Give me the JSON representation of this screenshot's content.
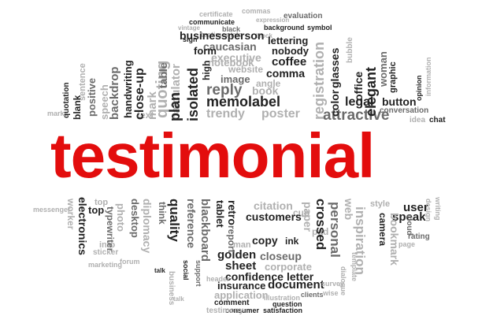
{
  "headline": "testimonial",
  "colors": {
    "headline": "#e30d0d",
    "dark_word": "#222222",
    "mid_word": "#6b6b6b",
    "light_word": "#b0b0b0",
    "background": "#ffffff"
  },
  "top_words": {
    "certificate": "certificate",
    "commas": "commas",
    "expression": "expression",
    "evaluation": "evaluation",
    "communicate": "communicate",
    "black": "black",
    "background": "background",
    "symbol": "symbol",
    "businessperson": "businessperson",
    "lettering": "lettering",
    "nobody": "nobody",
    "caucasian": "caucasian",
    "executive": "executive",
    "coffee": "coffee",
    "comma": "comma",
    "website": "website",
    "notebook": "notebook",
    "image": "image",
    "isolated": "isolated",
    "reply": "reply",
    "memolabel": "memolabel",
    "trendy": "trendy",
    "poster": "poster",
    "attractive": "attractive",
    "legal": "legal",
    "button": "button",
    "glasses": "glasses",
    "color": "color",
    "plan": "plan",
    "handwriting": "handwriting",
    "close_up": "close-up",
    "blank": "blank",
    "sentence": "sentence",
    "positive": "positive",
    "backdrop": "backdrop",
    "elegant": "elegant",
    "woman": "woman",
    "graphic": "graphic",
    "conversation": "conversation",
    "chat": "chat",
    "idea": "idea",
    "opinion": "opinion",
    "information": "information",
    "quoting": "quoting",
    "calculator": "calculator",
    "form": "form",
    "high": "high",
    "sign": "sign",
    "table": "table",
    "text": "text",
    "marks": "marks",
    "quotation": "quotation",
    "testimonials": "testimonials",
    "vintage": "vintage",
    "block": "block",
    "speech": "speech",
    "bubble": "bubble",
    "mark": "mark",
    "office": "office",
    "registration": "registration",
    "angle": "angle",
    "book": "book"
  },
  "bottom_words": {
    "quality": "quality",
    "electronics": "electronics",
    "top": "top",
    "retro": "retro",
    "report": "report",
    "citation": "citation",
    "customers": "customers",
    "crossed": "crossed",
    "user": "user",
    "speak": "speak",
    "copy": "copy",
    "ink": "ink",
    "pad": "pad",
    "golden": "golden",
    "sheet": "sheet",
    "closeup": "closeup",
    "corporate": "corporate",
    "confidence": "confidence",
    "letter": "letter",
    "insurance": "insurance",
    "document": "document",
    "application": "application",
    "comment": "comment",
    "illustration": "illustration",
    "question": "question",
    "consumer": "consumer",
    "satisfaction": "satisfaction",
    "testimony": "testimony",
    "personal": "personal",
    "inspiration": "inspiration",
    "camera": "camera",
    "rating": "rating",
    "messenger": "messenger",
    "worker": "worker",
    "desktop": "desktop",
    "diplomacy": "diplomacy",
    "reference": "reference",
    "photo": "photo",
    "forum": "forum",
    "talk": "talk",
    "social": "social",
    "marketing": "marketing",
    "survey": "survey",
    "clients": "clients",
    "cloud": "cloud",
    "page": "page",
    "web": "web",
    "cup": "cup",
    "man": "man",
    "paper": "paper",
    "tablet": "tablet",
    "header": "header",
    "blackboard": "blackboard",
    "bookmark": "bookmark",
    "typewriter": "typewriter",
    "info": "info",
    "sticker": "sticker",
    "style": "style",
    "think": "think",
    "wise": "wise",
    "writing": "writing",
    "dialogue": "dialogue",
    "design": "design",
    "icon": "icon",
    "shot": "shot",
    "star": "star",
    "support": "support",
    "template": "template",
    "business": "business",
    "attention": "attention"
  }
}
